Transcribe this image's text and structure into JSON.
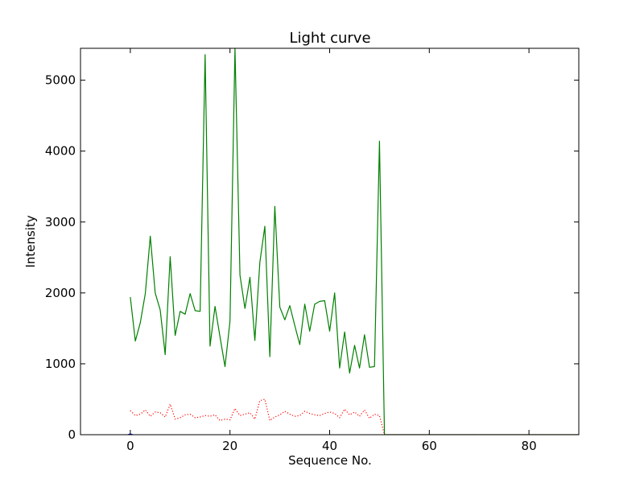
{
  "chart_data": {
    "type": "line",
    "title": "Light curve",
    "xlabel": "Sequence No.",
    "ylabel": "Intensity",
    "xlim": [
      -10,
      90
    ],
    "ylim": [
      0,
      5450
    ],
    "xticks": [
      0,
      20,
      40,
      60,
      80
    ],
    "yticks": [
      0,
      1000,
      2000,
      3000,
      4000,
      5000
    ],
    "grid": false,
    "series": [
      {
        "style": "solid",
        "color": "#008000",
        "x": [
          0,
          1,
          2,
          3,
          4,
          5,
          6,
          7,
          8,
          9,
          10,
          11,
          12,
          13,
          14,
          15,
          16,
          17,
          18,
          19,
          20,
          21,
          22,
          23,
          24,
          25,
          26,
          27,
          28,
          29,
          30,
          31,
          32,
          33,
          34,
          35,
          36,
          37,
          38,
          39,
          40,
          41,
          42,
          43,
          44,
          45,
          46,
          47,
          48,
          49,
          50,
          51,
          52,
          53,
          54,
          55,
          56,
          57,
          58,
          59,
          60,
          61,
          62,
          63,
          64,
          65,
          66,
          67,
          68,
          69,
          70,
          71,
          72,
          73,
          74,
          75,
          76,
          77,
          78,
          79,
          80,
          81,
          82,
          83,
          84,
          85,
          86,
          87,
          88,
          89,
          90
        ],
        "values": [
          1940,
          1320,
          1580,
          1990,
          2800,
          2000,
          1760,
          1130,
          2510,
          1400,
          1740,
          1700,
          1990,
          1750,
          1740,
          5360,
          1250,
          1810,
          1380,
          960,
          1600,
          5450,
          2250,
          1780,
          2220,
          1330,
          2430,
          2940,
          1100,
          3220,
          1800,
          1620,
          1820,
          1540,
          1270,
          1840,
          1460,
          1840,
          1880,
          1890,
          1460,
          2000,
          940,
          1450,
          870,
          1260,
          940,
          1410,
          950,
          960,
          4140,
          0,
          0,
          0,
          0,
          0,
          0,
          0,
          0,
          0,
          0,
          0,
          0,
          0,
          0,
          0,
          0,
          0,
          0,
          0,
          0,
          0,
          0,
          0,
          0,
          0,
          0,
          0,
          0,
          0,
          0,
          0,
          0,
          0,
          0,
          0,
          0,
          0,
          0,
          0,
          0
        ]
      },
      {
        "style": "dotted",
        "color": "#ff0000",
        "x": [
          0,
          1,
          2,
          3,
          4,
          5,
          6,
          7,
          8,
          9,
          10,
          11,
          12,
          13,
          14,
          15,
          16,
          17,
          18,
          19,
          20,
          21,
          22,
          23,
          24,
          25,
          26,
          27,
          28,
          29,
          30,
          31,
          32,
          33,
          34,
          35,
          36,
          37,
          38,
          39,
          40,
          41,
          42,
          43,
          44,
          45,
          46,
          47,
          48,
          49,
          50,
          51,
          52,
          53,
          54,
          55,
          56,
          57,
          58,
          59,
          60,
          61,
          62,
          63,
          64,
          65,
          66,
          67,
          68,
          69,
          70,
          71,
          72,
          73,
          74,
          75,
          76,
          77,
          78,
          79,
          80,
          81,
          82,
          83,
          84,
          85,
          86,
          87,
          88,
          89,
          90
        ],
        "values": [
          340,
          270,
          290,
          350,
          260,
          320,
          310,
          250,
          430,
          220,
          240,
          280,
          290,
          240,
          250,
          270,
          260,
          280,
          200,
          220,
          210,
          370,
          270,
          290,
          310,
          220,
          480,
          500,
          200,
          250,
          280,
          330,
          290,
          260,
          270,
          330,
          300,
          280,
          270,
          300,
          320,
          300,
          240,
          360,
          280,
          320,
          260,
          350,
          230,
          290,
          270,
          0,
          0,
          0,
          0,
          0,
          0,
          0,
          0,
          0,
          0,
          0,
          0,
          0,
          0,
          0,
          0,
          0,
          0,
          0,
          0,
          0,
          0,
          0,
          0,
          0,
          0,
          0,
          0,
          0,
          0,
          0,
          0,
          0,
          0,
          0,
          0,
          0,
          0,
          0,
          0
        ]
      },
      {
        "style": "solid",
        "color": "#0000ff",
        "x": [
          -0.5,
          0,
          0.5
        ],
        "values": [
          0,
          10,
          0
        ]
      }
    ]
  }
}
